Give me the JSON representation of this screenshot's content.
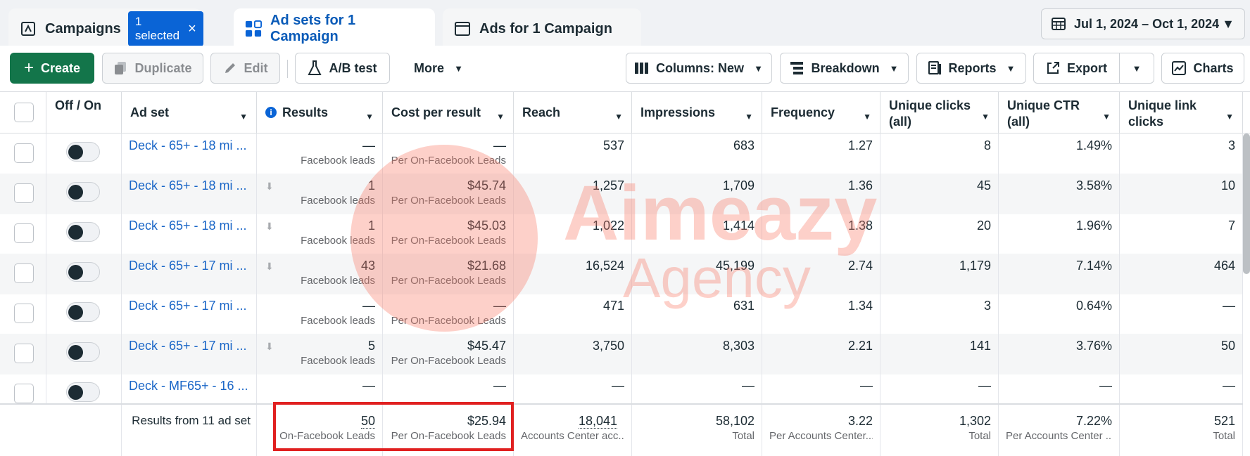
{
  "tabs": {
    "campaigns": "Campaigns",
    "selected_badge": "1 selected",
    "adsets": "Ad sets for 1 Campaign",
    "ads": "Ads for 1 Campaign"
  },
  "date_range": "Jul 1, 2024 – Oct 1, 2024",
  "toolbar": {
    "create": "Create",
    "duplicate": "Duplicate",
    "edit": "Edit",
    "ab_test": "A/B test",
    "more": "More",
    "columns": "Columns: New",
    "breakdown": "Breakdown",
    "reports": "Reports",
    "export": "Export",
    "charts": "Charts"
  },
  "columns": {
    "off_on": "Off / On",
    "ad_set": "Ad set",
    "results": "Results",
    "cost_per_result": "Cost per result",
    "reach": "Reach",
    "impressions": "Impressions",
    "frequency": "Frequency",
    "unique_clicks": "Unique clicks (all)",
    "unique_ctr": "Unique CTR (all)",
    "unique_link_clicks": "Unique link clicks"
  },
  "rows": [
    {
      "name": "Deck - 65+ - 18 mi ...",
      "results": "—",
      "results_sub": "Facebook leads",
      "cost": "—",
      "cost_sub": "Per On-Facebook Leads",
      "reach": "537",
      "impressions": "683",
      "frequency": "1.27",
      "unique_clicks": "8",
      "unique_ctr": "1.49%",
      "unique_link_clicks": "3"
    },
    {
      "name": "Deck - 65+ - 18 mi ...",
      "results": "1",
      "results_sub": "Facebook leads",
      "cost": "$45.74",
      "cost_sub": "Per On-Facebook Leads",
      "reach": "1,257",
      "impressions": "1,709",
      "frequency": "1.36",
      "unique_clicks": "45",
      "unique_ctr": "3.58%",
      "unique_link_clicks": "10"
    },
    {
      "name": "Deck - 65+ - 18 mi ...",
      "results": "1",
      "results_sub": "Facebook leads",
      "cost": "$45.03",
      "cost_sub": "Per On-Facebook Leads",
      "reach": "1,022",
      "impressions": "1,414",
      "frequency": "1.38",
      "unique_clicks": "20",
      "unique_ctr": "1.96%",
      "unique_link_clicks": "7"
    },
    {
      "name": "Deck - 65+ - 17 mi ...",
      "results": "43",
      "results_sub": "Facebook leads",
      "cost": "$21.68",
      "cost_sub": "Per On-Facebook Leads",
      "reach": "16,524",
      "impressions": "45,199",
      "frequency": "2.74",
      "unique_clicks": "1,179",
      "unique_ctr": "7.14%",
      "unique_link_clicks": "464"
    },
    {
      "name": "Deck - 65+ - 17 mi ...",
      "results": "—",
      "results_sub": "Facebook leads",
      "cost": "—",
      "cost_sub": "Per On-Facebook Leads",
      "reach": "471",
      "impressions": "631",
      "frequency": "1.34",
      "unique_clicks": "3",
      "unique_ctr": "0.64%",
      "unique_link_clicks": "—"
    },
    {
      "name": "Deck - 65+ - 17 mi ...",
      "results": "5",
      "results_sub": "Facebook leads",
      "cost": "$45.47",
      "cost_sub": "Per On-Facebook Leads",
      "reach": "3,750",
      "impressions": "8,303",
      "frequency": "2.21",
      "unique_clicks": "141",
      "unique_ctr": "3.76%",
      "unique_link_clicks": "50"
    },
    {
      "name": "Deck - MF65+ - 16 ...",
      "results": "—",
      "results_sub": "",
      "cost": "—",
      "cost_sub": "",
      "reach": "—",
      "impressions": "—",
      "frequency": "—",
      "unique_clicks": "—",
      "unique_ctr": "—",
      "unique_link_clicks": "—"
    }
  ],
  "totals": {
    "label": "Results from 11 ad set",
    "results": "50",
    "results_sub": "On-Facebook Leads",
    "cost": "$25.94",
    "cost_sub": "Per On-Facebook Leads",
    "reach": "18,041",
    "reach_sub": "Accounts Center acc...",
    "impressions": "58,102",
    "impressions_sub": "Total",
    "frequency": "3.22",
    "frequency_sub": "Per Accounts Center...",
    "unique_clicks": "1,302",
    "unique_clicks_sub": "Total",
    "unique_ctr": "7.22%",
    "unique_ctr_sub": "Per Accounts Center ...",
    "unique_link_clicks": "521",
    "unique_link_clicks_sub": "Total"
  },
  "watermark": {
    "line1": "Aimeazy",
    "line2": "Agency"
  }
}
